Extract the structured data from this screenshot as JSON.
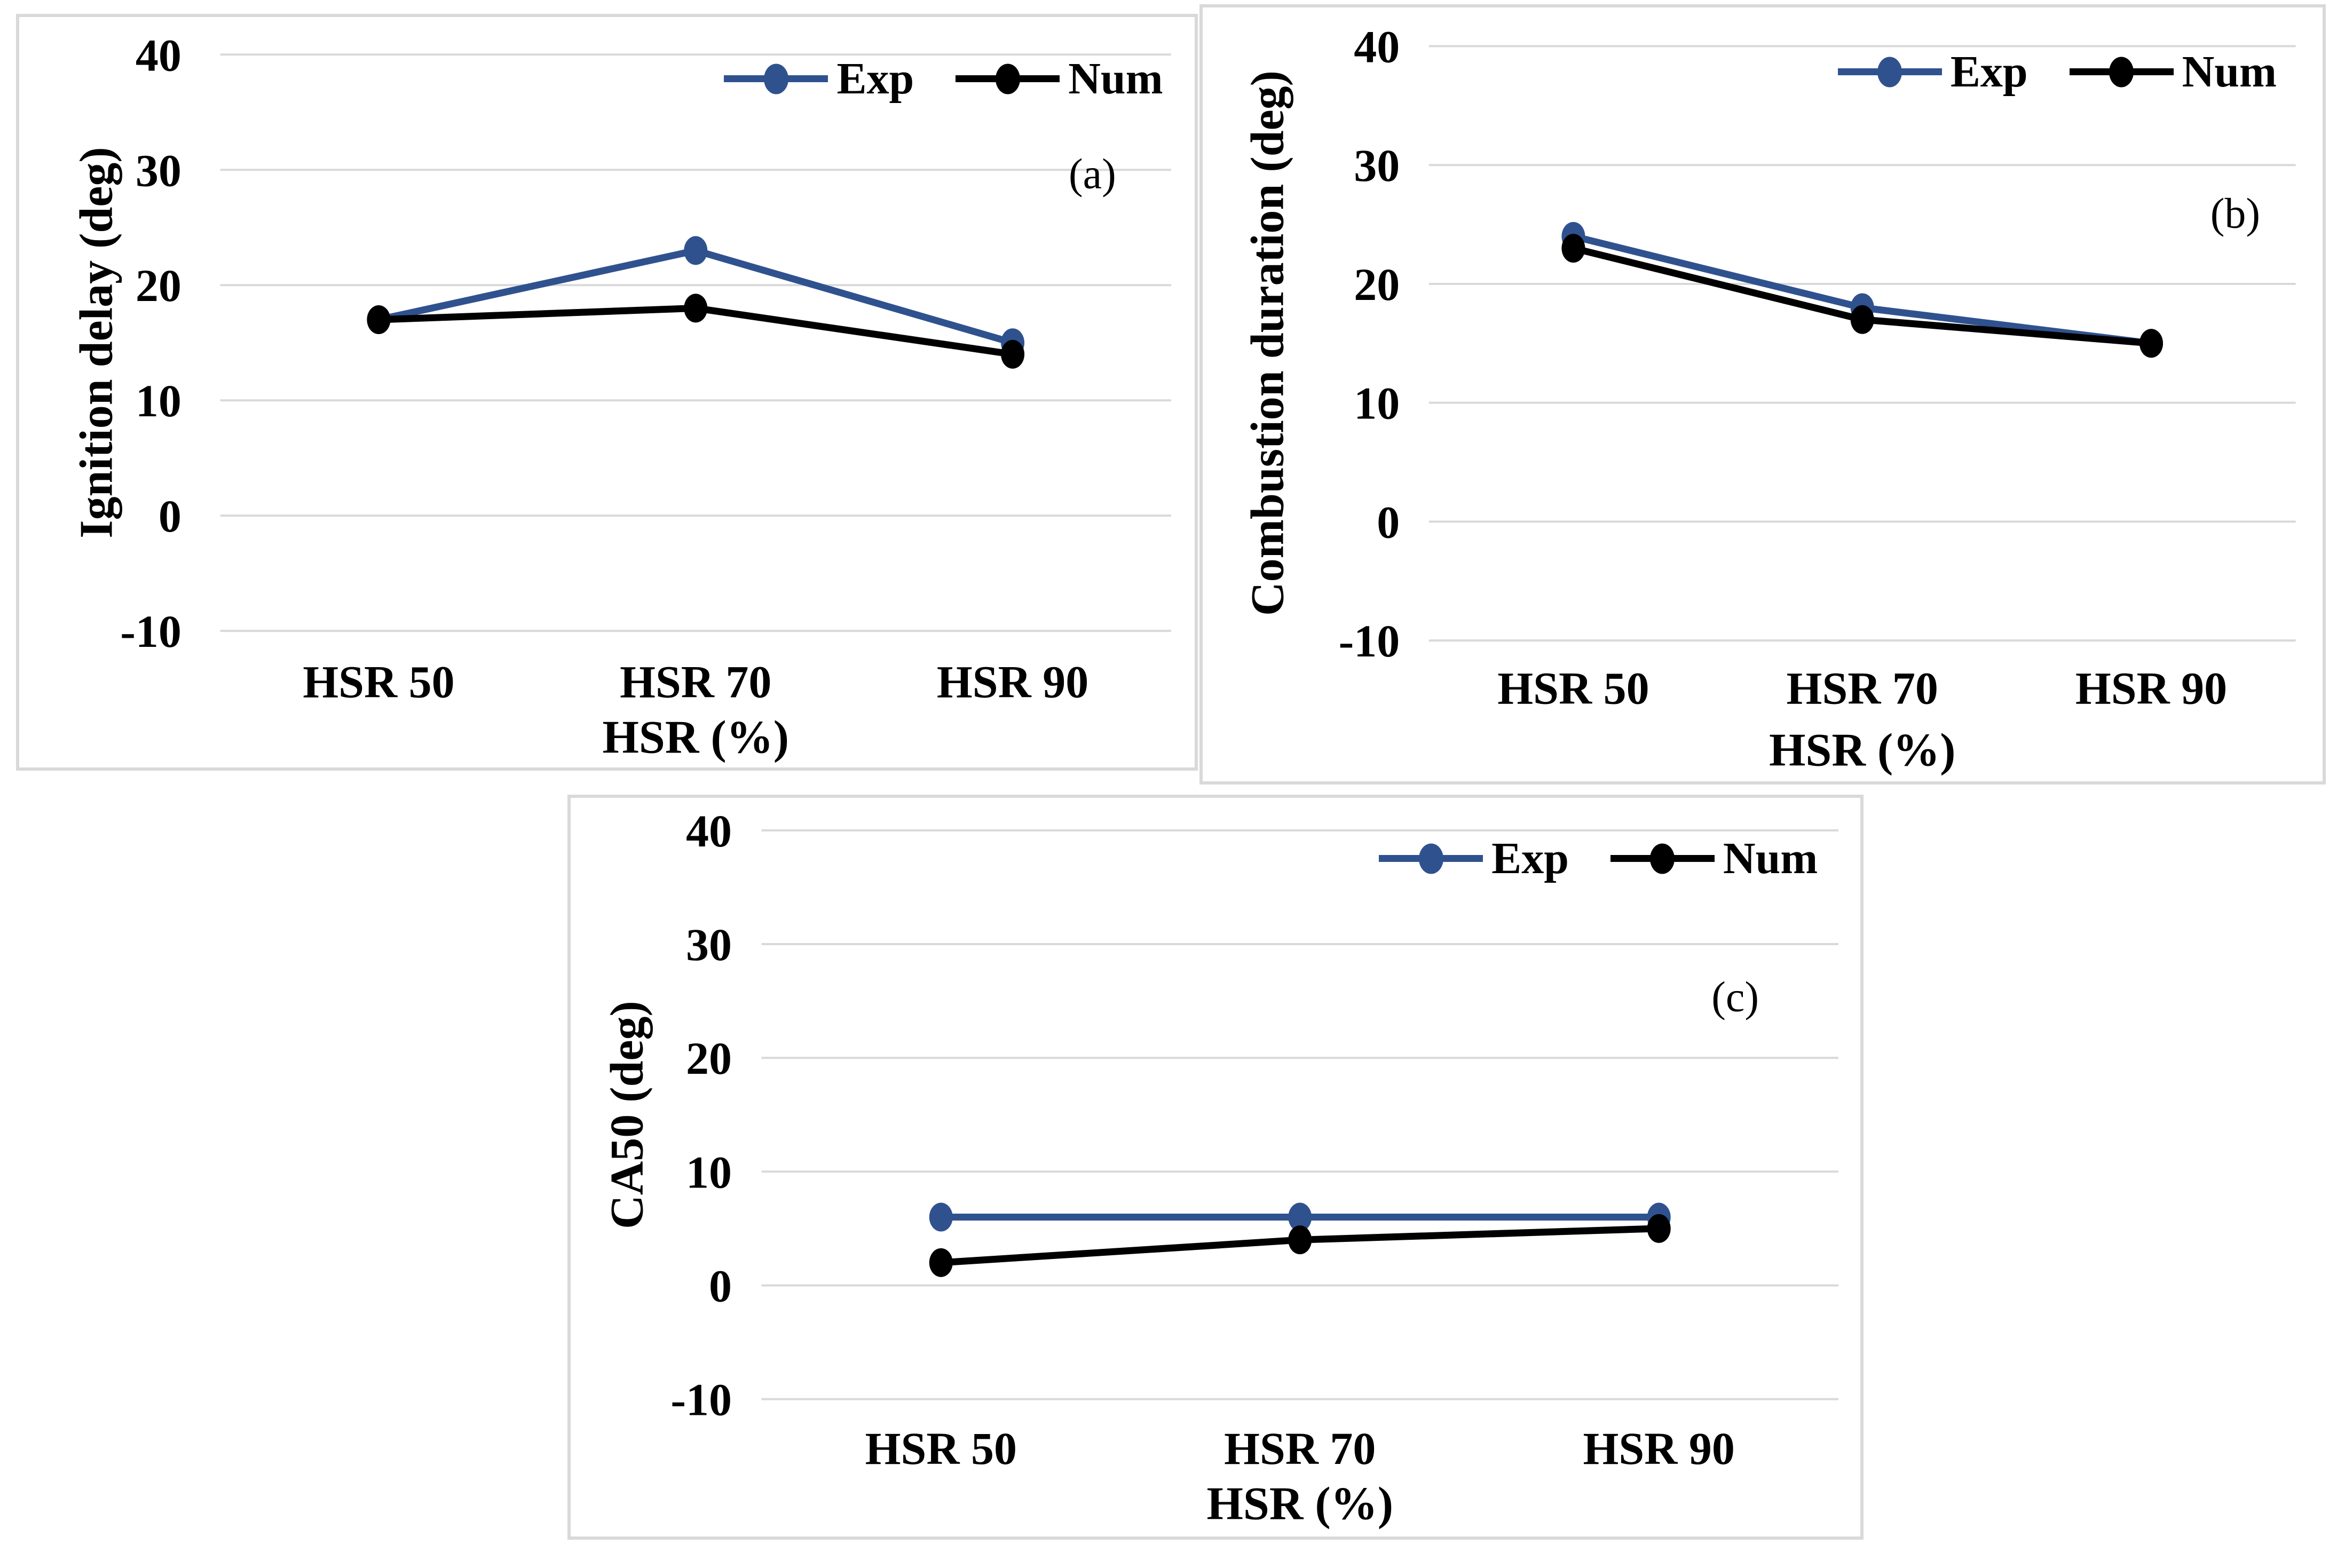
{
  "style": {
    "accent_blue": "#2F528F",
    "series_black": "#000000",
    "grid_color": "#D9D9D9",
    "panel_border_color": "#D9D9D9",
    "background": "#FFFFFF"
  },
  "chart_data": [
    {
      "type": "line",
      "panel": "a",
      "letter": "(a)",
      "xlabel": "HSR (%)",
      "ylabel": "Ignition delay (deg)",
      "categories": [
        "HSR 50",
        "HSR 70",
        "HSR 90"
      ],
      "ylim": [
        -10,
        40
      ],
      "yticks": [
        40,
        30,
        20,
        10,
        0,
        -10
      ],
      "grid": true,
      "legend_position": "top-right",
      "series": [
        {
          "name": "Exp",
          "color": "#2F528F",
          "values": [
            17,
            23,
            15
          ]
        },
        {
          "name": "Num",
          "color": "#000000",
          "values": [
            17,
            18,
            14
          ]
        }
      ]
    },
    {
      "type": "line",
      "panel": "b",
      "letter": "(b)",
      "xlabel": "HSR (%)",
      "ylabel": "Combustion duration (deg)",
      "categories": [
        "HSR 50",
        "HSR 70",
        "HSR 90"
      ],
      "ylim": [
        -10,
        40
      ],
      "yticks": [
        40,
        30,
        20,
        10,
        0,
        -10
      ],
      "grid": true,
      "legend_position": "top-right",
      "series": [
        {
          "name": "Exp",
          "color": "#2F528F",
          "values": [
            24,
            18,
            15
          ]
        },
        {
          "name": "Num",
          "color": "#000000",
          "values": [
            23,
            17,
            15
          ]
        }
      ]
    },
    {
      "type": "line",
      "panel": "c",
      "letter": "(c)",
      "xlabel": "HSR (%)",
      "ylabel": "CA50 (deg)",
      "categories": [
        "HSR 50",
        "HSR 70",
        "HSR 90"
      ],
      "ylim": [
        -10,
        40
      ],
      "yticks": [
        40,
        30,
        20,
        10,
        0,
        -10
      ],
      "grid": true,
      "legend_position": "top-right",
      "series": [
        {
          "name": "Exp",
          "color": "#2F528F",
          "values": [
            6,
            6,
            6
          ]
        },
        {
          "name": "Num",
          "color": "#000000",
          "values": [
            2,
            4,
            5
          ]
        }
      ]
    }
  ]
}
